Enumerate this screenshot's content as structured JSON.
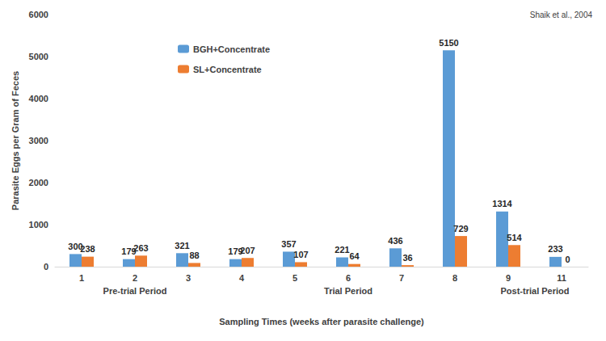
{
  "chart_data": {
    "type": "bar",
    "y_label": "Parasite Eggs per Gram of Feces",
    "x_label": "Sampling Times (weeks after parasite challenge)",
    "annotations": [
      "Shaik et al., 2004"
    ],
    "categories": [
      "1",
      "2",
      "3",
      "4",
      "5",
      "6",
      "7",
      "8",
      "9",
      "11"
    ],
    "groups": [
      {
        "label": "Pre-trial Period",
        "categories": [
          "1",
          "2",
          "3"
        ]
      },
      {
        "label": "Trial Period",
        "categories": [
          "4",
          "5",
          "6",
          "7",
          "8"
        ]
      },
      {
        "label": "Post-trial Period",
        "categories": [
          "9",
          "11"
        ]
      }
    ],
    "series": [
      {
        "name": "BGH+Concentrate",
        "color": "#5b9bd5",
        "values": [
          300,
          179,
          321,
          179,
          357,
          221,
          436,
          5150,
          1314,
          233
        ]
      },
      {
        "name": "SL+Concentrate",
        "color": "#ed7d31",
        "values": [
          238,
          263,
          88,
          207,
          107,
          64,
          36,
          729,
          514,
          0
        ]
      }
    ],
    "ylim": [
      0,
      6000
    ],
    "yticks": [
      0,
      1000,
      2000,
      3000,
      4000,
      5000,
      6000
    ],
    "grid": false,
    "legend": "upper left",
    "data_labels": true
  }
}
